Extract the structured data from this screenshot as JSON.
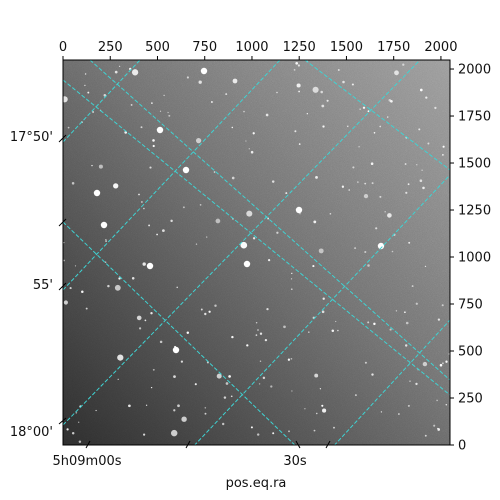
{
  "figure": {
    "xlabel": "pos.eq.ra",
    "colors": {
      "grid": "#3fd3d3",
      "frame": "#000000",
      "sky_light": "#8e8e8e",
      "sky_dark": "#2a2a2a"
    },
    "top_axis": {
      "ticks": [
        "0",
        "250",
        "500",
        "750",
        "1000",
        "1250",
        "1500",
        "1750",
        "2000"
      ],
      "values": [
        0,
        250,
        500,
        750,
        1000,
        1250,
        1500,
        1750,
        2000
      ]
    },
    "right_axis": {
      "ticks": [
        "0",
        "250",
        "500",
        "750",
        "1000",
        "1250",
        "1500",
        "1750",
        "2000"
      ],
      "values": [
        0,
        250,
        500,
        750,
        1000,
        1250,
        1500,
        1750,
        2000
      ]
    },
    "left_axis": {
      "ticks": [
        "17°50'",
        "55'",
        "18°00'"
      ]
    },
    "bottom_axis": {
      "ticks": [
        "5h09m00s",
        "30s"
      ]
    }
  }
}
